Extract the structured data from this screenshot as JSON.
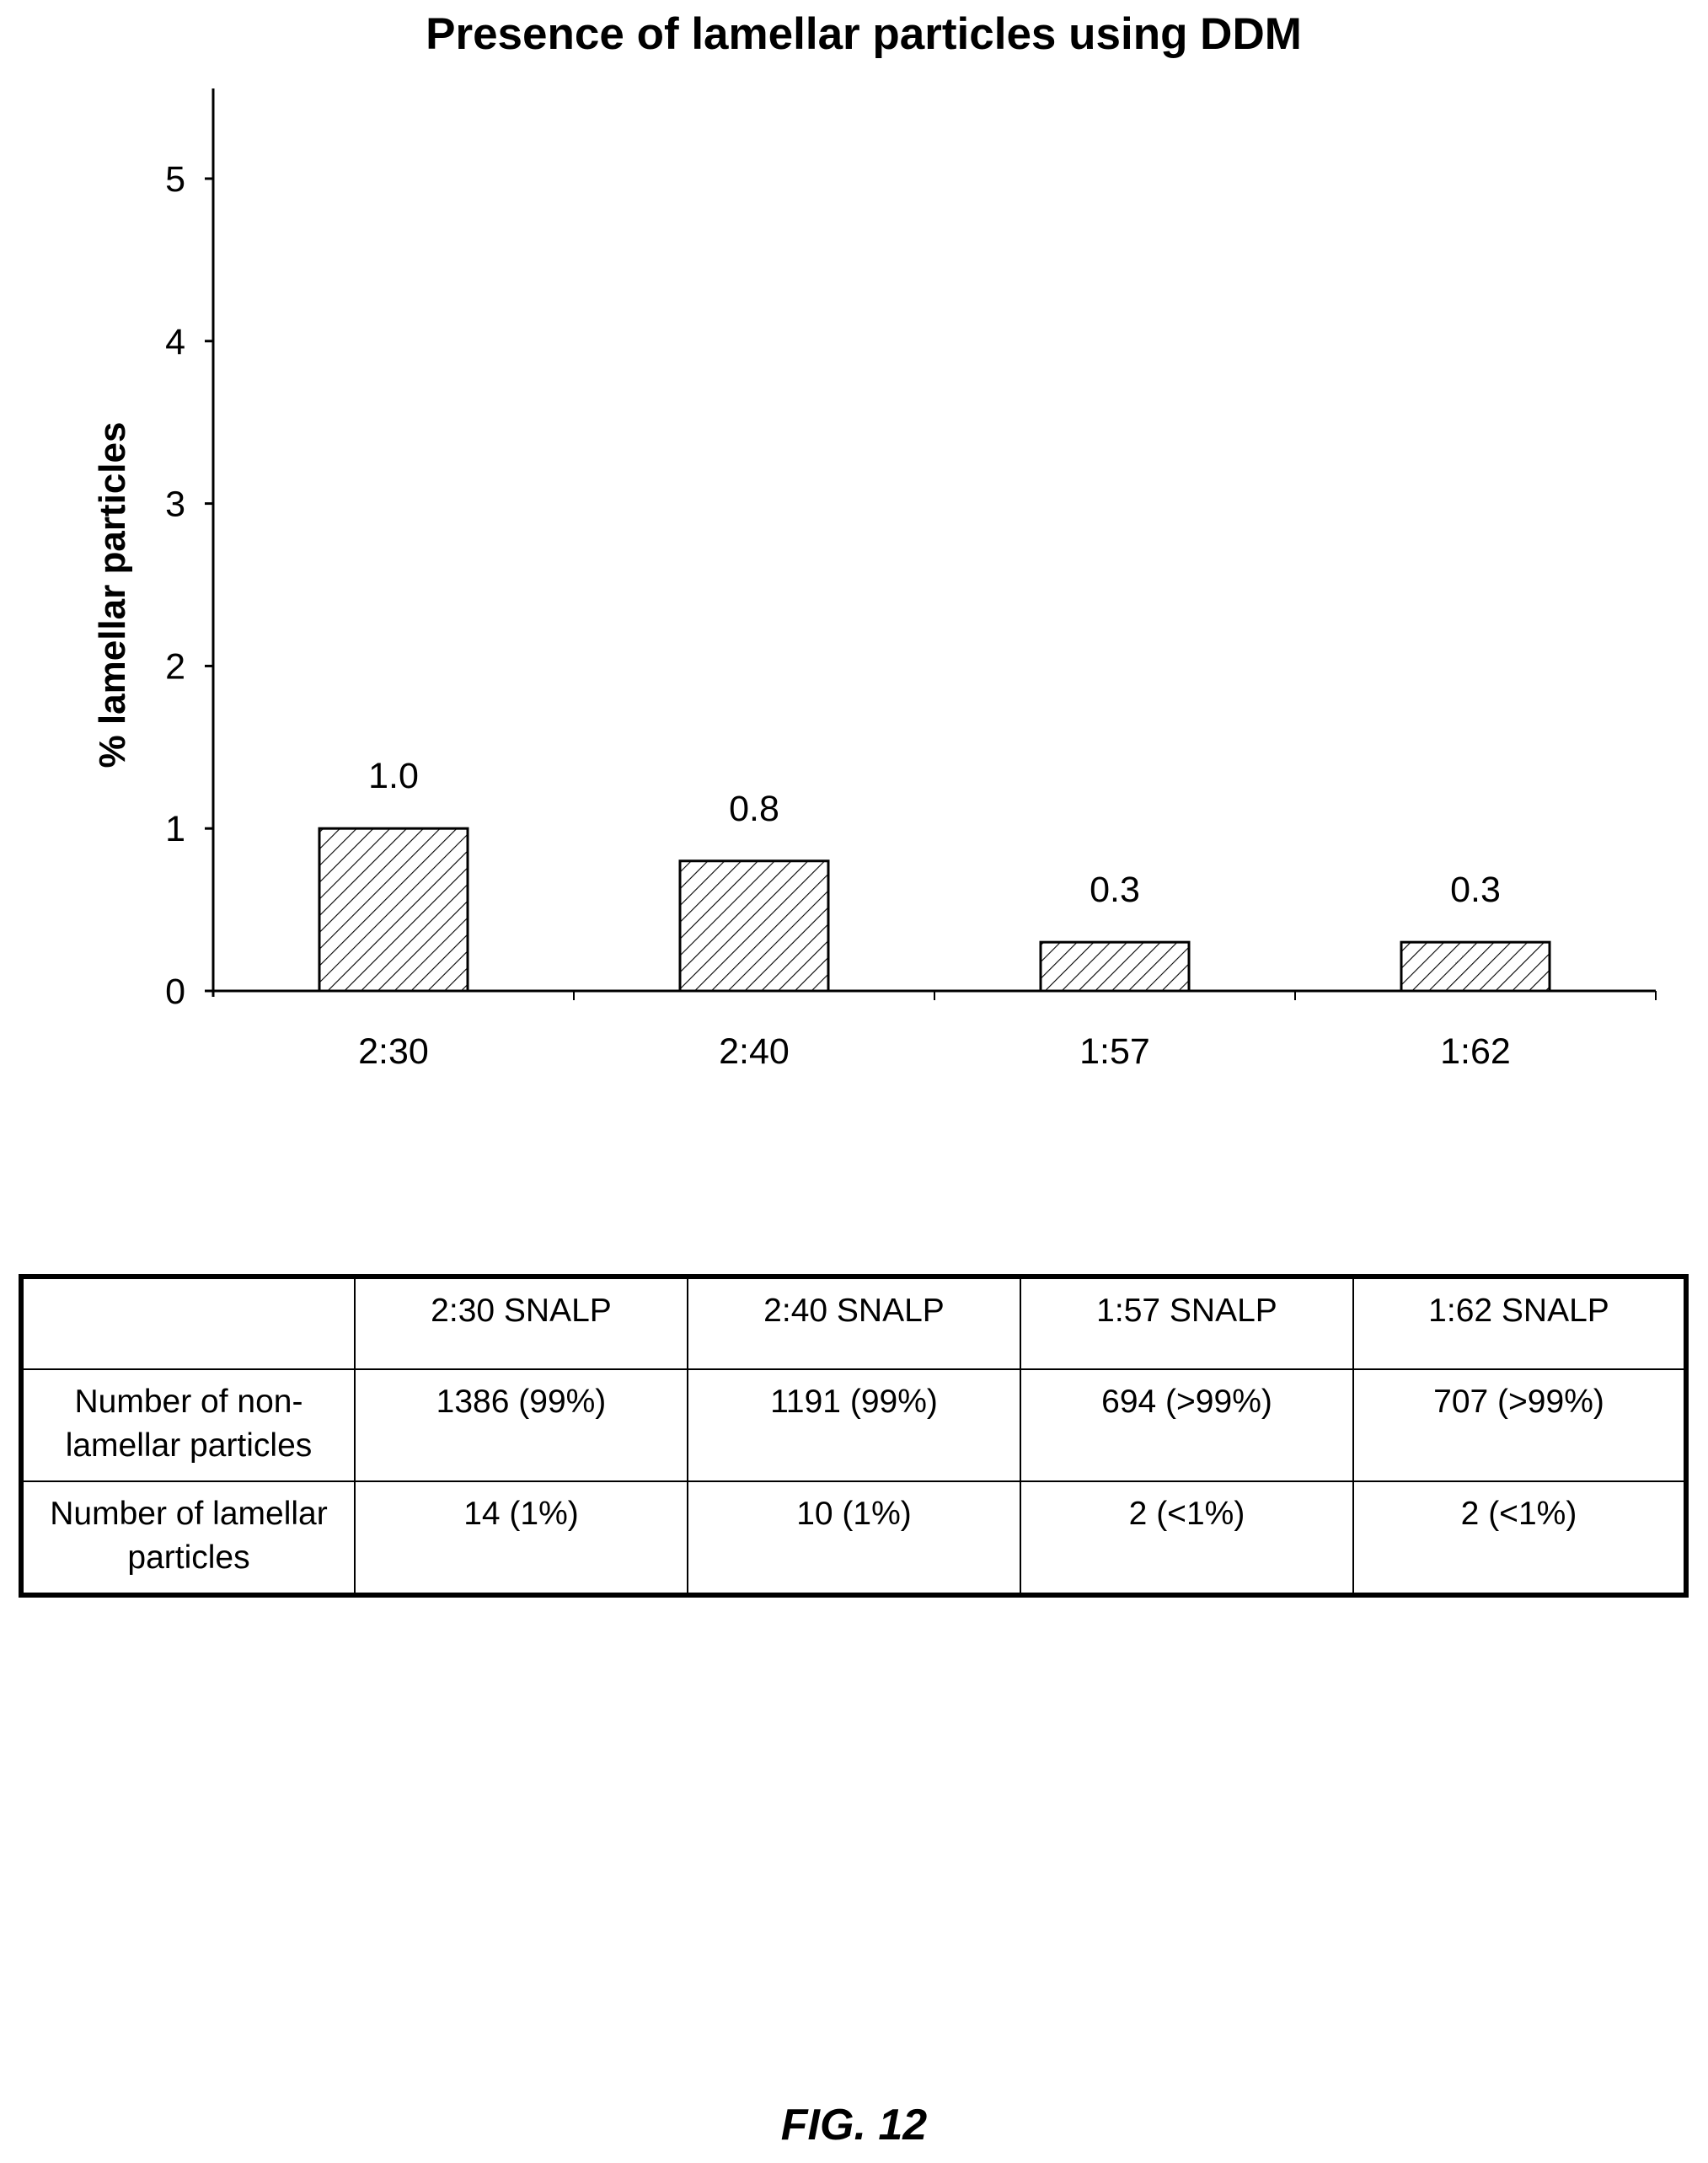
{
  "chart_data": {
    "type": "bar",
    "title": "Presence of lamellar particles using DDM",
    "ylabel": "% lamellar particles",
    "xlabel": "",
    "categories": [
      "2:30",
      "2:40",
      "1:57",
      "1:62"
    ],
    "values": [
      1.0,
      0.8,
      0.3,
      0.3
    ],
    "value_labels": [
      "1.0",
      "0.8",
      "0.3",
      "0.3"
    ],
    "ylim": [
      0,
      5.5
    ],
    "yticks": [
      "0",
      "1",
      "2",
      "3",
      "4",
      "5"
    ],
    "grid": false,
    "bar_fill": "diagonal-hatch"
  },
  "table": {
    "header": [
      "",
      "2:30 SNALP",
      "2:40 SNALP",
      "1:57 SNALP",
      "1:62 SNALP"
    ],
    "rows": [
      [
        "Number of non-lamellar particles",
        "1386 (99%)",
        "1191 (99%)",
        "694 (>99%)",
        "707 (>99%)"
      ],
      [
        "Number of lamellar particles",
        "14 (1%)",
        "10 (1%)",
        "2 (<1%)",
        "2 (<1%)"
      ]
    ]
  },
  "figure_caption": "FIG. 12"
}
